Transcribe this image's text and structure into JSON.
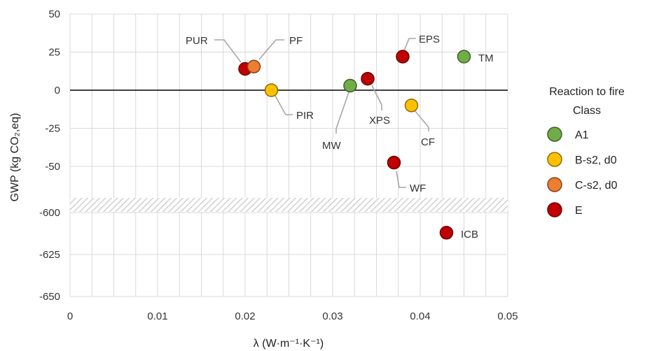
{
  "chart_data": {
    "type": "scatter",
    "xlabel": "λ (W·m⁻¹·K⁻¹)",
    "ylabel": "GWP (kg CO₂,eq)",
    "xlim": [
      0,
      0.05
    ],
    "x_ticks": [
      0,
      0.01,
      0.02,
      0.03,
      0.04,
      0.05
    ],
    "x_tick_labels": [
      "0",
      "0.01",
      "0.02",
      "0.03",
      "0.04",
      "0.05"
    ],
    "y_axis_break": true,
    "y_upper_ticks": [
      50,
      25,
      0,
      -25,
      -50
    ],
    "y_lower_ticks": [
      -600,
      -625,
      -650
    ],
    "y_tick_labels_upper": [
      "50",
      "25",
      "0",
      "-25",
      "-50"
    ],
    "y_tick_labels_lower": [
      "-600",
      "-625",
      "-650"
    ],
    "grid": true,
    "legend": {
      "title_line1": "Reaction to fire",
      "title_line2": "Class",
      "placement": "right",
      "entries": [
        {
          "label": "A1",
          "color": "#70ad47"
        },
        {
          "label": "B-s2, d0",
          "color": "#ffc000"
        },
        {
          "label": "C-s2, d0",
          "color": "#ed7d31"
        },
        {
          "label": "E",
          "color": "#c00000"
        }
      ]
    },
    "points": [
      {
        "label": "PUR",
        "x": 0.02,
        "y": 14,
        "class": "E"
      },
      {
        "label": "PF",
        "x": 0.021,
        "y": 15.5,
        "class": "C-s2, d0"
      },
      {
        "label": "PIR",
        "x": 0.023,
        "y": 0,
        "class": "B-s2, d0"
      },
      {
        "label": "MW",
        "x": 0.032,
        "y": 3,
        "class": "A1"
      },
      {
        "label": "XPS",
        "x": 0.034,
        "y": 7.5,
        "class": "E"
      },
      {
        "label": "EPS",
        "x": 0.038,
        "y": 22,
        "class": "E"
      },
      {
        "label": "TM",
        "x": 0.045,
        "y": 22,
        "class": "A1"
      },
      {
        "label": "CF",
        "x": 0.039,
        "y": -10,
        "class": "B-s2, d0"
      },
      {
        "label": "WF",
        "x": 0.037,
        "y": -47.5,
        "class": "E"
      },
      {
        "label": "ICB",
        "x": 0.043,
        "y": -612,
        "class": "E"
      }
    ]
  }
}
